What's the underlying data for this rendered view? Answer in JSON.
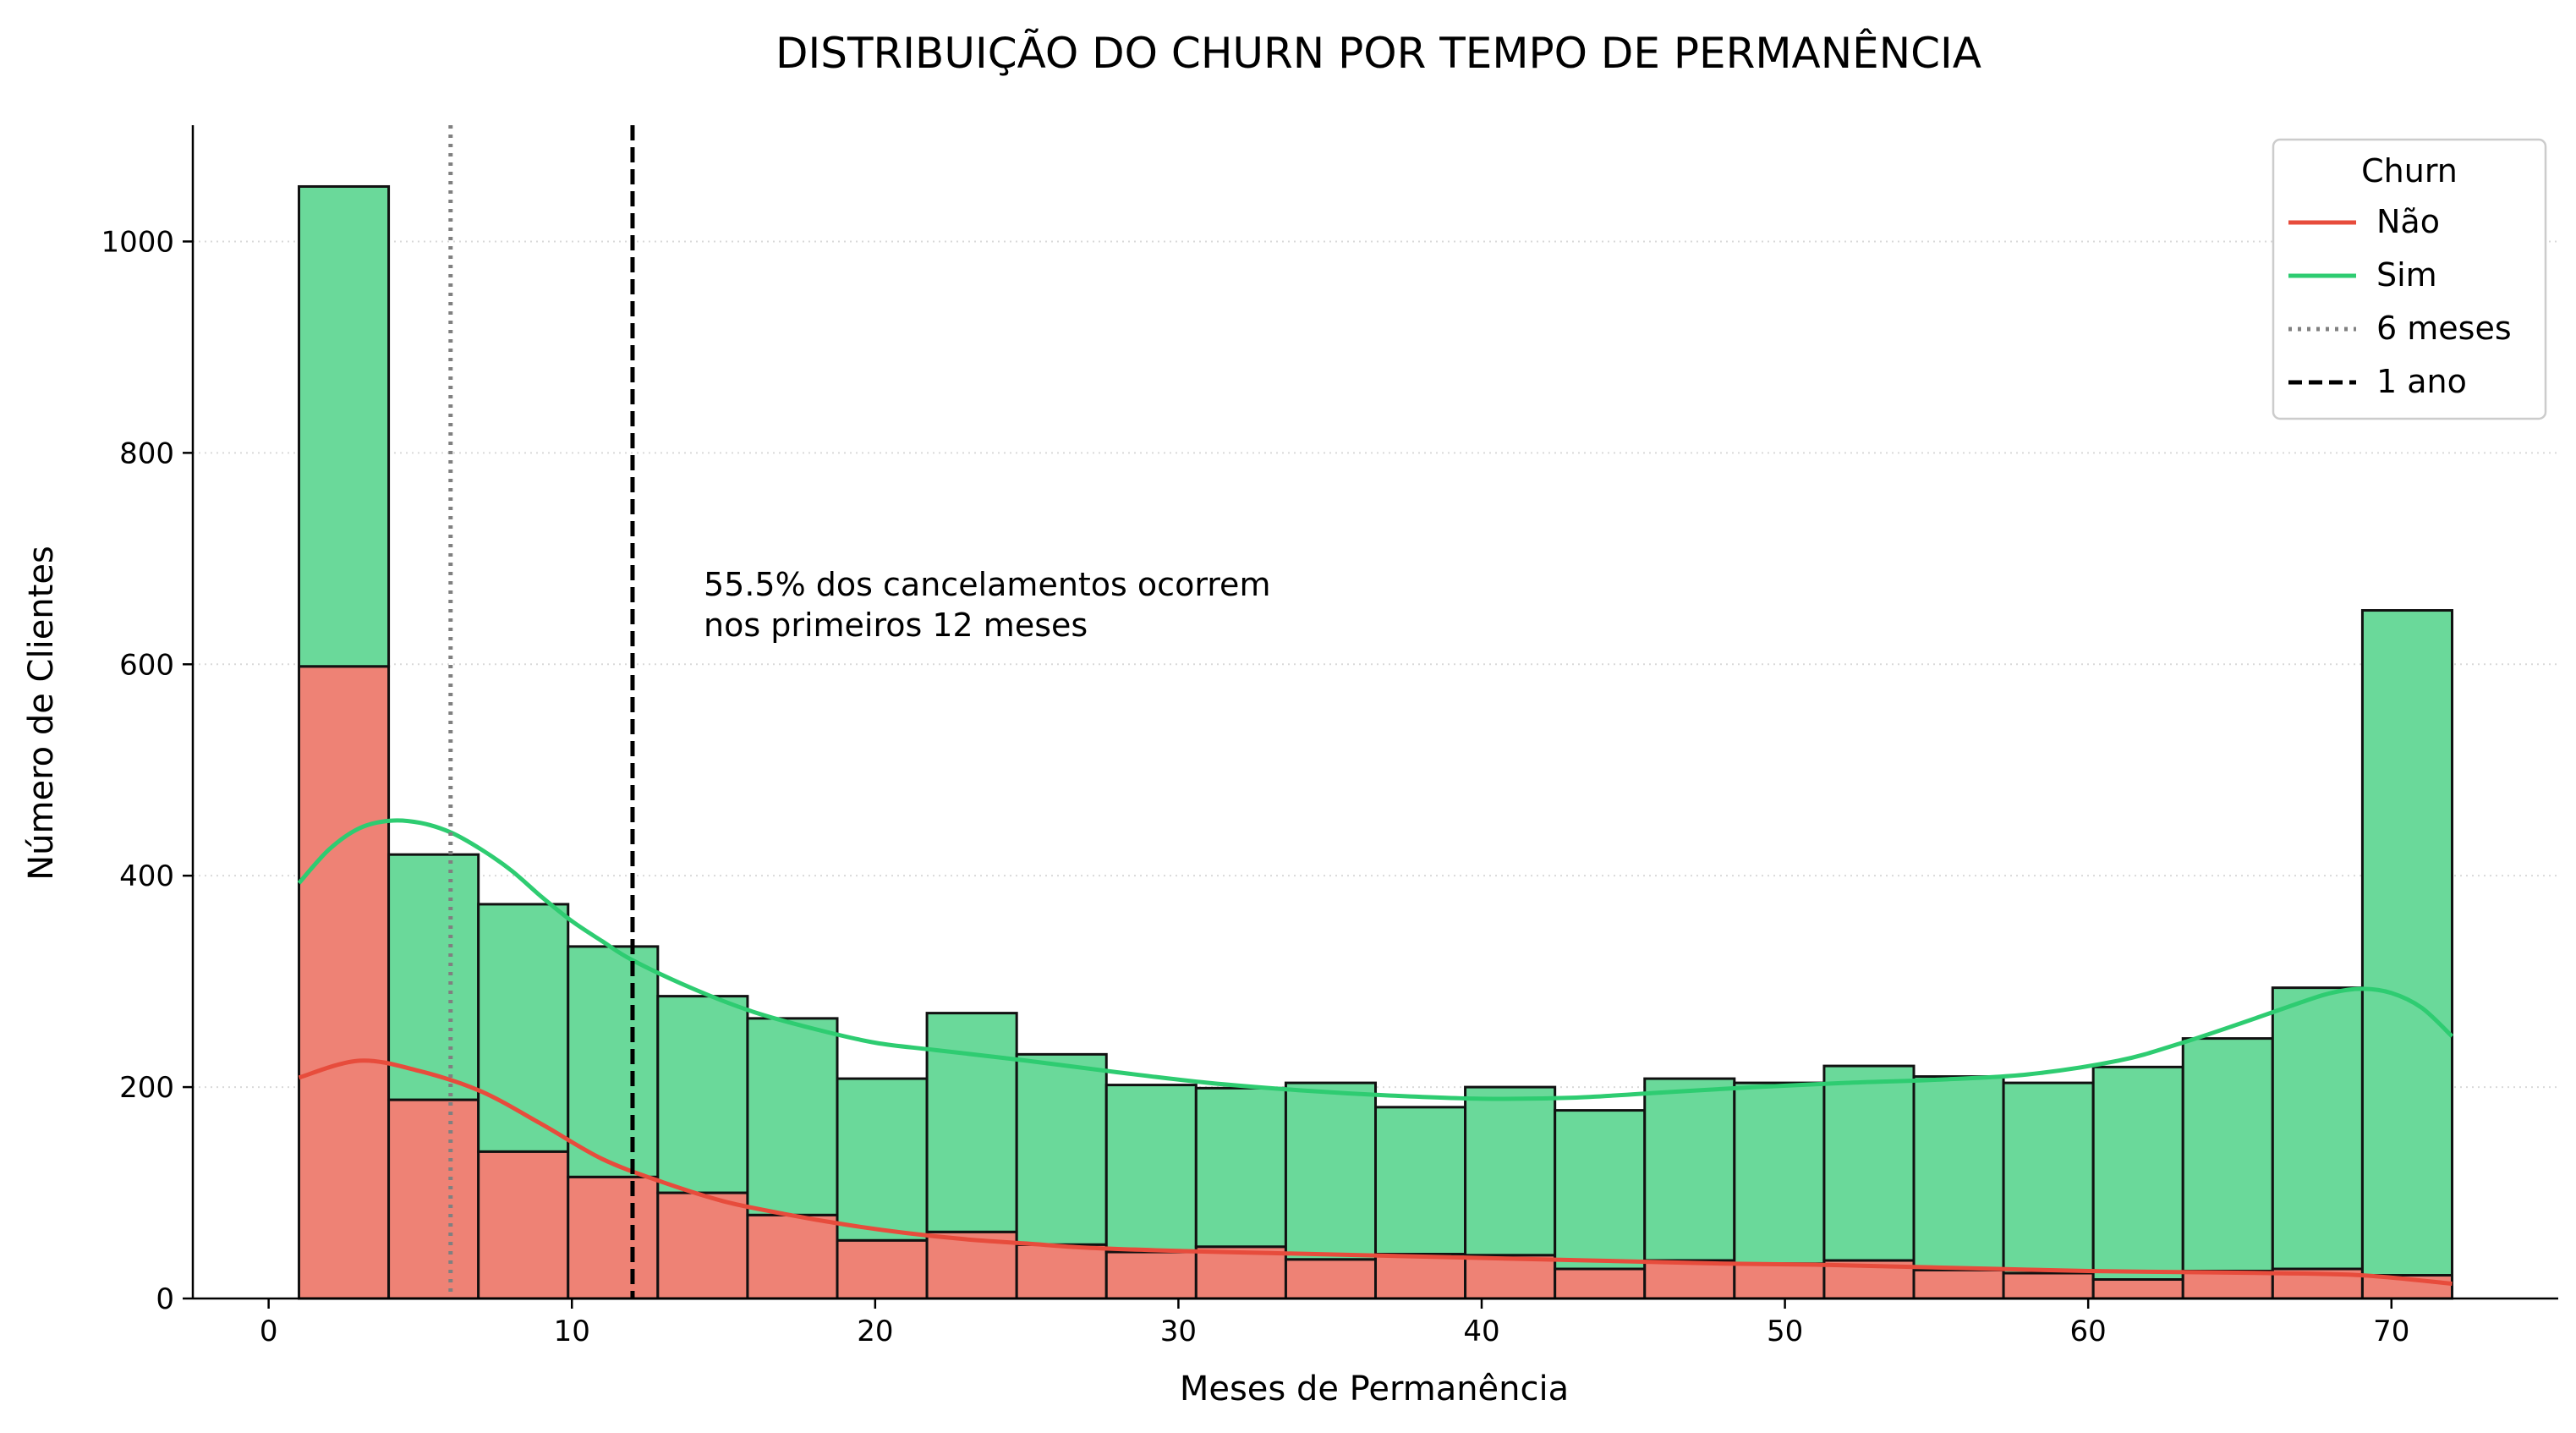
{
  "chart_data": {
    "type": "bar",
    "stacked": true,
    "title": "DISTRIBUIÇÃO DO CHURN POR TEMPO DE PERMANÊNCIA",
    "xlabel": "Meses de Permanência",
    "ylabel": "Número de Clientes",
    "xlim": [
      -2.5,
      75.5
    ],
    "ylim": [
      0,
      1110
    ],
    "xticks": [
      0,
      10,
      20,
      30,
      40,
      50,
      60,
      70
    ],
    "yticks": [
      0,
      200,
      400,
      600,
      800,
      1000
    ],
    "grid": "y-dotted",
    "bin_edges": [
      1,
      3.958,
      6.917,
      9.875,
      12.833,
      15.792,
      18.75,
      21.708,
      24.667,
      27.625,
      30.583,
      33.542,
      36.5,
      39.458,
      42.417,
      45.375,
      48.333,
      51.292,
      54.25,
      57.208,
      60.167,
      63.125,
      66.083,
      69.042,
      72
    ],
    "series": [
      {
        "name": "Não",
        "color": "#e74c3c",
        "fill": "#ee8275",
        "values": [
          598,
          188,
          139,
          115,
          100,
          79,
          55,
          63,
          51,
          44,
          49,
          37,
          42,
          41,
          28,
          36,
          33,
          36,
          27,
          24,
          18,
          26,
          28,
          22
        ],
        "kde": [
          [
            1,
            209
          ],
          [
            3,
            225
          ],
          [
            5,
            215
          ],
          [
            7,
            196
          ],
          [
            9,
            165
          ],
          [
            11,
            132
          ],
          [
            13,
            110
          ],
          [
            15,
            92
          ],
          [
            17,
            80
          ],
          [
            19,
            70
          ],
          [
            21,
            62
          ],
          [
            23,
            56
          ],
          [
            25,
            52
          ],
          [
            27,
            48
          ],
          [
            30,
            45
          ],
          [
            33,
            43
          ],
          [
            36,
            41
          ],
          [
            39,
            39
          ],
          [
            42,
            37
          ],
          [
            45,
            35
          ],
          [
            48,
            33
          ],
          [
            51,
            32
          ],
          [
            54,
            30
          ],
          [
            57,
            28
          ],
          [
            60,
            26
          ],
          [
            63,
            25
          ],
          [
            66,
            24
          ],
          [
            69,
            22
          ],
          [
            72,
            14
          ]
        ]
      },
      {
        "name": "Sim",
        "color": "#2ecc71",
        "fill": "#6ad99a",
        "values": [
          454,
          232,
          234,
          218,
          186,
          186,
          153,
          207,
          180,
          158,
          150,
          167,
          139,
          159,
          150,
          172,
          171,
          184,
          183,
          180,
          201,
          220,
          266,
          629
        ],
        "kde": [
          [
            1,
            393
          ],
          [
            2,
            425
          ],
          [
            3,
            445
          ],
          [
            4,
            452
          ],
          [
            5,
            450
          ],
          [
            6,
            441
          ],
          [
            7,
            425
          ],
          [
            8,
            405
          ],
          [
            9,
            380
          ],
          [
            10,
            357
          ],
          [
            11,
            338
          ],
          [
            12,
            320
          ],
          [
            14,
            293
          ],
          [
            16,
            271
          ],
          [
            18,
            255
          ],
          [
            20,
            242
          ],
          [
            22,
            235
          ],
          [
            25,
            225
          ],
          [
            28,
            214
          ],
          [
            31,
            204
          ],
          [
            34,
            197
          ],
          [
            37,
            192
          ],
          [
            40,
            189
          ],
          [
            43,
            190
          ],
          [
            46,
            195
          ],
          [
            49,
            200
          ],
          [
            52,
            204
          ],
          [
            55,
            207
          ],
          [
            58,
            212
          ],
          [
            61,
            225
          ],
          [
            63,
            241
          ],
          [
            65,
            260
          ],
          [
            67,
            280
          ],
          [
            68,
            289
          ],
          [
            69,
            293
          ],
          [
            70,
            289
          ],
          [
            71,
            275
          ],
          [
            72,
            248
          ]
        ]
      }
    ],
    "reference_lines": [
      {
        "name": "6 meses",
        "x": 6,
        "style": "dotted",
        "color": "#808080"
      },
      {
        "name": "1 ano",
        "x": 12,
        "style": "dashed",
        "color": "#000000"
      }
    ],
    "annotation": {
      "lines": [
        "55.5% dos cancelamentos ocorrem",
        "nos primeiros 12 meses"
      ],
      "x": 14.3,
      "y": 665
    },
    "legend": {
      "title": "Churn",
      "placement": "top-right",
      "entries": [
        "Não",
        "Sim",
        "6 meses",
        "1 ano"
      ]
    }
  }
}
